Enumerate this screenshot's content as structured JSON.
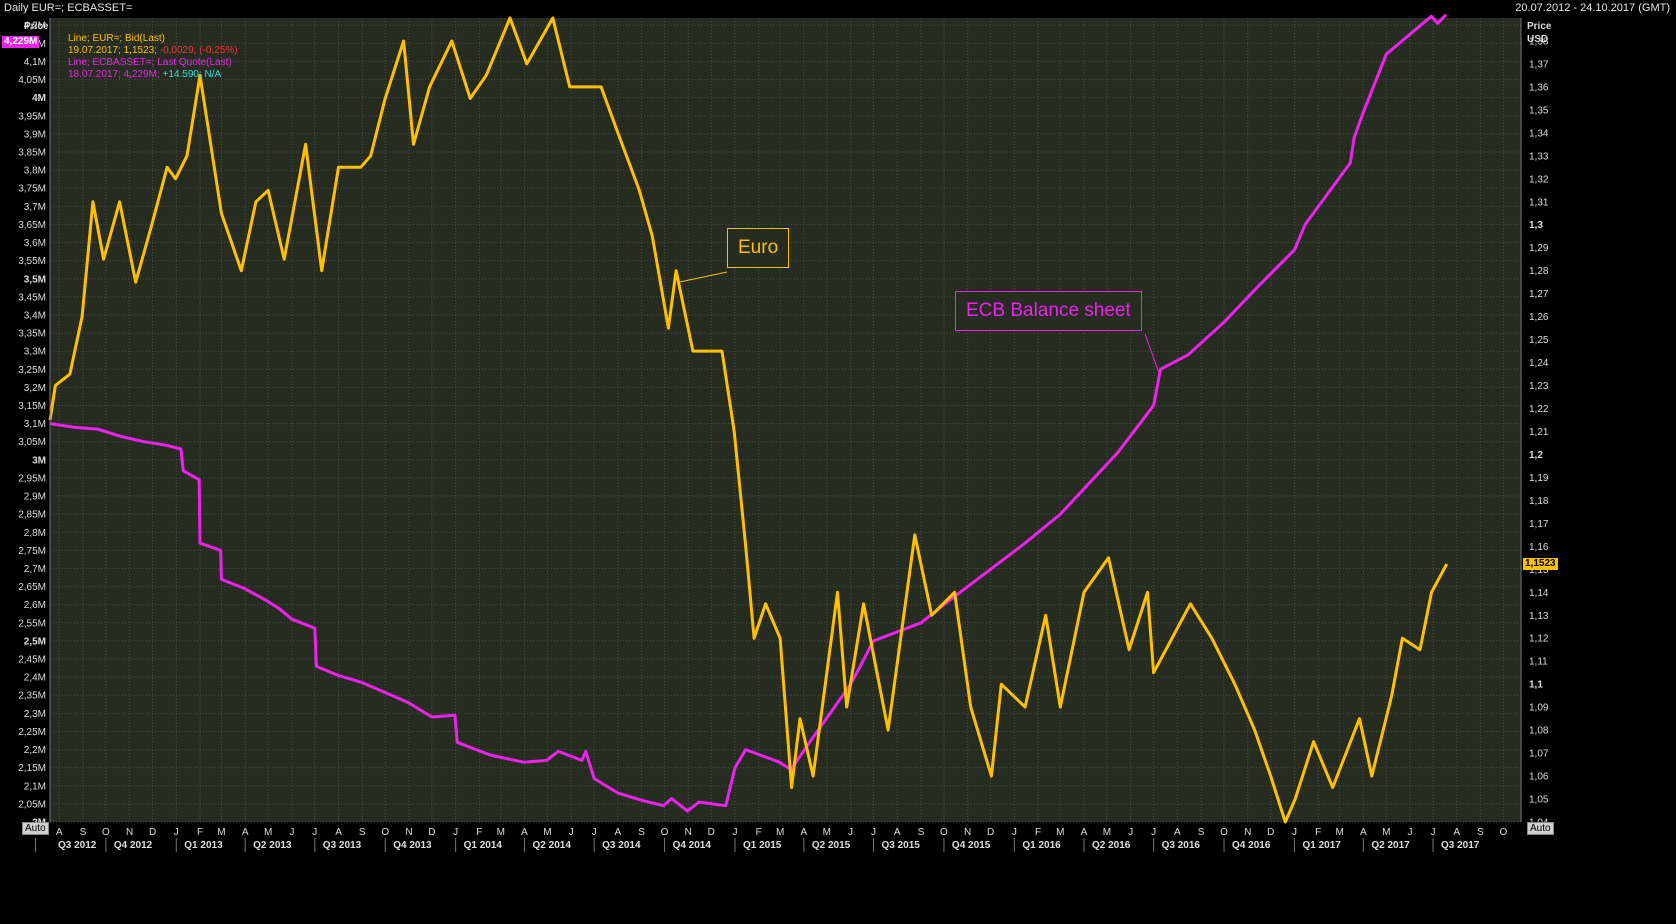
{
  "header": {
    "title": "Daily EUR=; ECBASSET=",
    "date_range": "20.07.2012 - 24.10.2017 (GMT)"
  },
  "legend": {
    "eur_line1": "Line; EUR=; Bid(Last)",
    "eur_line2_prefix": "19.07.2017; 1,1523; ",
    "eur_line2_change": "-0,0029; (-0,25%)",
    "ecb_line1": "Line; ECBASSET=; Last Quote(Last)",
    "ecb_line2_prefix": "18.07.2017; 4,229M; ",
    "ecb_line2_change": "+14.590; N/A"
  },
  "left_axis": {
    "title": "Price",
    "last_value_badge": "4,229M",
    "auto_label": "Auto"
  },
  "right_axis": {
    "title": "Price",
    "unit": "USD",
    "last_value_badge": "1,1523",
    "auto_label": "Auto"
  },
  "annotations": {
    "euro": "Euro",
    "ecb": "ECB Balance sheet"
  },
  "colors": {
    "euro": "#ffc000",
    "ecb": "#ee22ee",
    "background": "#262d20",
    "grid": "#4a4f45",
    "eur_change": "#ff3333",
    "ecb_change": "#33dddd"
  },
  "chart_data": {
    "type": "line",
    "x_range": [
      "20.07.2012",
      "24.10.2017"
    ],
    "x_month_ticks": [
      "A",
      "S",
      "O",
      "N",
      "D",
      "J",
      "F",
      "M",
      "A",
      "M",
      "J",
      "J",
      "A",
      "S",
      "O",
      "N",
      "D",
      "J",
      "F",
      "M",
      "A",
      "M",
      "J",
      "J",
      "A",
      "S",
      "O",
      "N",
      "D",
      "J",
      "F",
      "M",
      "A",
      "M",
      "J",
      "J",
      "A",
      "S",
      "O",
      "N",
      "D",
      "J",
      "F",
      "M",
      "A",
      "M",
      "J",
      "J",
      "A",
      "S",
      "O",
      "N",
      "D",
      "J",
      "F",
      "M",
      "A",
      "M",
      "J",
      "J",
      "A",
      "S",
      "O"
    ],
    "x_quarter_labels": [
      "Q3 2012",
      "Q4 2012",
      "Q1 2013",
      "Q2 2013",
      "Q3 2013",
      "Q4 2013",
      "Q1 2014",
      "Q2 2014",
      "Q3 2014",
      "Q4 2014",
      "Q1 2015",
      "Q2 2015",
      "Q3 2015",
      "Q4 2015",
      "Q1 2016",
      "Q2 2016",
      "Q3 2016",
      "Q4 2016",
      "Q1 2017",
      "Q2 2017",
      "Q3 2017"
    ],
    "left_axis_ticks": [
      "2M",
      "2,05M",
      "2,1M",
      "2,15M",
      "2,2M",
      "2,25M",
      "2,3M",
      "2,35M",
      "2,4M",
      "2,45M",
      "2,5M",
      "2,55M",
      "2,6M",
      "2,65M",
      "2,7M",
      "2,75M",
      "2,8M",
      "2,85M",
      "2,9M",
      "2,95M",
      "3M",
      "3,05M",
      "3,1M",
      "3,15M",
      "3,2M",
      "3,25M",
      "3,3M",
      "3,35M",
      "3,4M",
      "3,45M",
      "3,5M",
      "3,55M",
      "3,6M",
      "3,65M",
      "3,7M",
      "3,75M",
      "3,8M",
      "3,85M",
      "3,9M",
      "3,95M",
      "4M",
      "4,05M",
      "4,1M",
      "4,15M",
      "4,2M"
    ],
    "right_axis_ticks": [
      "1,04",
      "1,05",
      "1,06",
      "1,07",
      "1,08",
      "1,09",
      "1,1",
      "1,11",
      "1,12",
      "1,13",
      "1,14",
      "1,15",
      "1,16",
      "1,17",
      "1,18",
      "1,19",
      "1,2",
      "1,21",
      "1,22",
      "1,23",
      "1,24",
      "1,25",
      "1,26",
      "1,27",
      "1,28",
      "1,29",
      "1,3",
      "1,31",
      "1,32",
      "1,33",
      "1,34",
      "1,35",
      "1,36",
      "1,37",
      "1,38"
    ],
    "ylim_left": [
      2.0,
      4.22
    ],
    "ylim_right": [
      1.04,
      1.39
    ],
    "series": [
      {
        "name": "EUR=",
        "axis": "right",
        "points": [
          [
            "2012-07-20",
            1.215
          ],
          [
            "2012-07-27",
            1.23
          ],
          [
            "2012-08-15",
            1.235
          ],
          [
            "2012-08-31",
            1.26
          ],
          [
            "2012-09-14",
            1.31
          ],
          [
            "2012-09-28",
            1.285
          ],
          [
            "2012-10-19",
            1.31
          ],
          [
            "2012-11-09",
            1.275
          ],
          [
            "2012-11-30",
            1.3
          ],
          [
            "2012-12-20",
            1.325
          ],
          [
            "2012-12-31",
            1.32
          ],
          [
            "2013-01-15",
            1.33
          ],
          [
            "2013-02-01",
            1.365
          ],
          [
            "2013-02-15",
            1.335
          ],
          [
            "2013-03-01",
            1.305
          ],
          [
            "2013-03-27",
            1.28
          ],
          [
            "2013-04-15",
            1.31
          ],
          [
            "2013-05-01",
            1.315
          ],
          [
            "2013-05-22",
            1.285
          ],
          [
            "2013-06-19",
            1.335
          ],
          [
            "2013-07-10",
            1.28
          ],
          [
            "2013-08-01",
            1.325
          ],
          [
            "2013-08-30",
            1.325
          ],
          [
            "2013-09-12",
            1.33
          ],
          [
            "2013-10-01",
            1.355
          ],
          [
            "2013-10-25",
            1.38
          ],
          [
            "2013-11-07",
            1.335
          ],
          [
            "2013-11-28",
            1.36
          ],
          [
            "2013-12-27",
            1.38
          ],
          [
            "2014-01-20",
            1.355
          ],
          [
            "2014-02-10",
            1.365
          ],
          [
            "2014-03-13",
            1.39
          ],
          [
            "2014-04-04",
            1.37
          ],
          [
            "2014-05-08",
            1.39
          ],
          [
            "2014-05-30",
            1.36
          ],
          [
            "2014-06-19",
            1.36
          ],
          [
            "2014-07-10",
            1.36
          ],
          [
            "2014-08-01",
            1.34
          ],
          [
            "2014-08-29",
            1.315
          ],
          [
            "2014-09-15",
            1.295
          ],
          [
            "2014-10-06",
            1.255
          ],
          [
            "2014-10-16",
            1.28
          ],
          [
            "2014-11-07",
            1.245
          ],
          [
            "2014-11-25",
            1.245
          ],
          [
            "2014-12-15",
            1.245
          ],
          [
            "2014-12-31",
            1.21
          ],
          [
            "2015-01-15",
            1.16
          ],
          [
            "2015-01-26",
            1.12
          ],
          [
            "2015-02-10",
            1.135
          ],
          [
            "2015-03-01",
            1.12
          ],
          [
            "2015-03-16",
            1.055
          ],
          [
            "2015-03-27",
            1.085
          ],
          [
            "2015-04-13",
            1.06
          ],
          [
            "2015-05-15",
            1.14
          ],
          [
            "2015-05-27",
            1.09
          ],
          [
            "2015-06-18",
            1.135
          ],
          [
            "2015-07-20",
            1.08
          ],
          [
            "2015-08-24",
            1.165
          ],
          [
            "2015-09-15",
            1.13
          ],
          [
            "2015-10-15",
            1.14
          ],
          [
            "2015-11-05",
            1.09
          ],
          [
            "2015-12-02",
            1.06
          ],
          [
            "2015-12-15",
            1.1
          ],
          [
            "2016-01-15",
            1.09
          ],
          [
            "2016-02-11",
            1.13
          ],
          [
            "2016-03-01",
            1.09
          ],
          [
            "2016-04-01",
            1.14
          ],
          [
            "2016-05-03",
            1.155
          ],
          [
            "2016-05-30",
            1.115
          ],
          [
            "2016-06-23",
            1.14
          ],
          [
            "2016-07-01",
            1.105
          ],
          [
            "2016-08-18",
            1.135
          ],
          [
            "2016-09-15",
            1.12
          ],
          [
            "2016-10-15",
            1.1
          ],
          [
            "2016-11-10",
            1.08
          ],
          [
            "2016-12-01",
            1.06
          ],
          [
            "2016-12-20",
            1.04
          ],
          [
            "2017-01-02",
            1.05
          ],
          [
            "2017-01-26",
            1.075
          ],
          [
            "2017-02-20",
            1.055
          ],
          [
            "2017-03-27",
            1.085
          ],
          [
            "2017-04-12",
            1.06
          ],
          [
            "2017-05-08",
            1.095
          ],
          [
            "2017-05-22",
            1.12
          ],
          [
            "2017-06-14",
            1.115
          ],
          [
            "2017-06-29",
            1.14
          ],
          [
            "2017-07-19",
            1.1523
          ]
        ]
      },
      {
        "name": "ECBASSET=",
        "axis": "left",
        "points": [
          [
            "2012-07-20",
            3.1
          ],
          [
            "2012-08-20",
            3.09
          ],
          [
            "2012-09-20",
            3.085
          ],
          [
            "2012-10-20",
            3.065
          ],
          [
            "2012-11-20",
            3.05
          ],
          [
            "2012-12-20",
            3.04
          ],
          [
            "2013-01-07",
            3.03
          ],
          [
            "2013-01-10",
            2.97
          ],
          [
            "2013-01-31",
            2.945
          ],
          [
            "2013-02-01",
            2.77
          ],
          [
            "2013-02-28",
            2.75
          ],
          [
            "2013-03-01",
            2.67
          ],
          [
            "2013-03-31",
            2.645
          ],
          [
            "2013-04-30",
            2.61
          ],
          [
            "2013-05-15",
            2.59
          ],
          [
            "2013-06-01",
            2.56
          ],
          [
            "2013-07-01",
            2.535
          ],
          [
            "2013-07-03",
            2.43
          ],
          [
            "2013-07-31",
            2.405
          ],
          [
            "2013-09-01",
            2.385
          ],
          [
            "2013-10-31",
            2.33
          ],
          [
            "2013-12-01",
            2.29
          ],
          [
            "2013-12-31",
            2.295
          ],
          [
            "2014-01-03",
            2.22
          ],
          [
            "2014-02-15",
            2.185
          ],
          [
            "2014-03-31",
            2.165
          ],
          [
            "2014-04-30",
            2.17
          ],
          [
            "2014-05-15",
            2.195
          ],
          [
            "2014-06-15",
            2.17
          ],
          [
            "2014-06-20",
            2.195
          ],
          [
            "2014-07-01",
            2.12
          ],
          [
            "2014-08-01",
            2.08
          ],
          [
            "2014-09-01",
            2.06
          ],
          [
            "2014-09-30",
            2.045
          ],
          [
            "2014-10-10",
            2.065
          ],
          [
            "2014-10-31",
            2.03
          ],
          [
            "2014-11-15",
            2.055
          ],
          [
            "2014-12-20",
            2.045
          ],
          [
            "2015-01-01",
            2.15
          ],
          [
            "2015-01-15",
            2.2
          ],
          [
            "2015-02-28",
            2.165
          ],
          [
            "2015-03-15",
            2.145
          ],
          [
            "2015-04-15",
            2.24
          ],
          [
            "2015-06-01",
            2.38
          ],
          [
            "2015-07-01",
            2.5
          ],
          [
            "2015-09-01",
            2.55
          ],
          [
            "2015-10-01",
            2.6
          ],
          [
            "2015-11-01",
            2.65
          ],
          [
            "2015-12-15",
            2.72
          ],
          [
            "2016-01-15",
            2.77
          ],
          [
            "2016-03-01",
            2.85
          ],
          [
            "2016-04-01",
            2.92
          ],
          [
            "2016-05-15",
            3.02
          ],
          [
            "2016-07-01",
            3.15
          ],
          [
            "2016-07-10",
            3.25
          ],
          [
            "2016-08-15",
            3.29
          ],
          [
            "2016-10-01",
            3.38
          ],
          [
            "2016-11-15",
            3.48
          ],
          [
            "2017-01-01",
            3.58
          ],
          [
            "2017-01-15",
            3.65
          ],
          [
            "2017-03-15",
            3.82
          ],
          [
            "2017-03-20",
            3.89
          ],
          [
            "2017-04-01",
            3.96
          ],
          [
            "2017-05-01",
            4.12
          ],
          [
            "2017-06-15",
            4.2
          ],
          [
            "2017-06-29",
            4.225
          ],
          [
            "2017-07-07",
            4.205
          ],
          [
            "2017-07-18",
            4.229
          ]
        ]
      }
    ]
  }
}
